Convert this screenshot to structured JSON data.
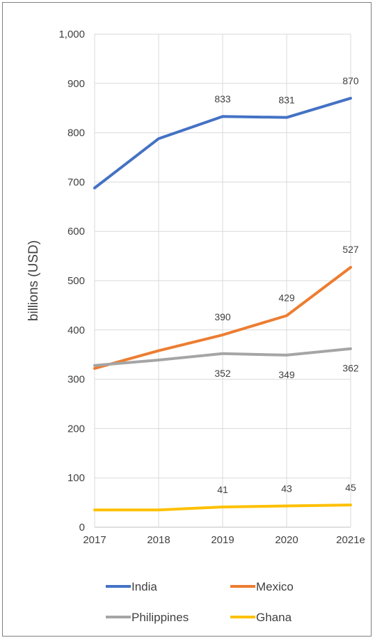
{
  "chart_data": {
    "type": "line",
    "title": "",
    "xlabel": "",
    "ylabel": "billions (USD)",
    "categories": [
      "2017",
      "2018",
      "2019",
      "2020",
      "2021e"
    ],
    "ylim": [
      0,
      1000
    ],
    "yticks": [
      "0",
      "100",
      "200",
      "300",
      "400",
      "500",
      "600",
      "700",
      "800",
      "900",
      "1,000"
    ],
    "grid": true,
    "legend_position": "bottom",
    "series": [
      {
        "name": "India",
        "color": "#4472c4",
        "values": [
          688,
          788,
          833,
          831,
          870
        ],
        "labels": [
          "",
          "",
          "833",
          "831",
          "870"
        ]
      },
      {
        "name": "Mexico",
        "color": "#ed7d31",
        "values": [
          322,
          358,
          390,
          429,
          527
        ],
        "labels": [
          "",
          "",
          "390",
          "429",
          "527"
        ]
      },
      {
        "name": "Philippines",
        "color": "#a5a5a5",
        "values": [
          328,
          339,
          352,
          349,
          362
        ],
        "labels": [
          "",
          "",
          "352",
          "349",
          "362"
        ]
      },
      {
        "name": "Ghana",
        "color": "#ffc000",
        "values": [
          35,
          35,
          41,
          43,
          45
        ],
        "labels": [
          "",
          "",
          "41",
          "43",
          "45"
        ]
      }
    ]
  }
}
